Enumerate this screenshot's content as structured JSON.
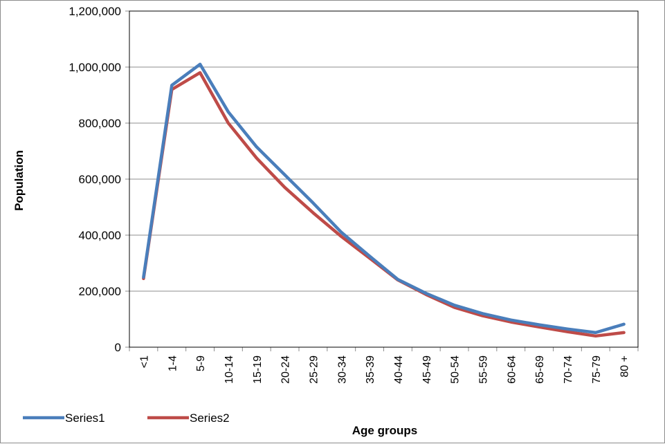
{
  "chart_data": {
    "type": "line",
    "title": "",
    "xlabel": "Age groups",
    "ylabel": "Population",
    "ylim": [
      0,
      1200000
    ],
    "yticks": [
      "0",
      "200,000",
      "400,000",
      "600,000",
      "800,000",
      "1,000,000",
      "1,200,000"
    ],
    "ytick_values": [
      0,
      200000,
      400000,
      600000,
      800000,
      1000000,
      1200000
    ],
    "grid": "horizontal major gridlines",
    "legend_position": "bottom-left",
    "categories": [
      "<1",
      "1-4",
      "5-9",
      "10-14",
      "15-19",
      "20-24",
      "25-29",
      "30-34",
      "35-39",
      "40-44",
      "45-49",
      "50-54",
      "55-59",
      "60-64",
      "65-69",
      "70-74",
      "75-79",
      "80 +"
    ],
    "series": [
      {
        "name": "Series1",
        "color": "#4a7ebb",
        "values": [
          250000,
          935000,
          1010000,
          840000,
          715000,
          615000,
          515000,
          410000,
          325000,
          242000,
          192000,
          150000,
          120000,
          97000,
          80000,
          65000,
          52000,
          82000
        ]
      },
      {
        "name": "Series2",
        "color": "#be4b48",
        "values": [
          245000,
          920000,
          980000,
          800000,
          675000,
          570000,
          480000,
          395000,
          318000,
          240000,
          188000,
          142000,
          112000,
          90000,
          72000,
          55000,
          40000,
          52000
        ]
      }
    ]
  }
}
